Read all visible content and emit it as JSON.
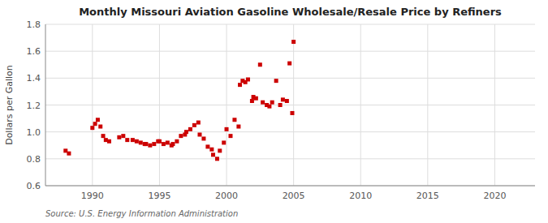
{
  "chart_data": {
    "type": "scatter",
    "title": "Monthly Missouri Aviation Gasoline Wholesale/Resale Price by Refiners",
    "ylabel": "Dollars per Gallon",
    "source": "Source: U.S. Energy Information Administration",
    "xlim": [
      1986.5,
      2023
    ],
    "ylim": [
      0.6,
      1.8
    ],
    "xticks": [
      1990,
      1995,
      2000,
      2005,
      2010,
      2015,
      2020
    ],
    "yticks": [
      0.6,
      0.8,
      {
        "value": 1.0,
        "label": "1.0"
      },
      1.2,
      1.4,
      1.6,
      1.8
    ],
    "grid": true,
    "color": "#cc0000",
    "marker": "square",
    "x": [
      1988.0,
      1988.25,
      1990.0,
      1990.2,
      1990.4,
      1990.6,
      1990.8,
      1991.0,
      1991.25,
      1992.0,
      1992.3,
      1992.6,
      1993.0,
      1993.3,
      1993.6,
      1993.9,
      1994.0,
      1994.3,
      1994.6,
      1994.9,
      1995.0,
      1995.3,
      1995.6,
      1995.9,
      1996.0,
      1996.3,
      1996.6,
      1996.9,
      1997.0,
      1997.3,
      1997.6,
      1997.9,
      1998.0,
      1998.3,
      1998.6,
      1998.9,
      1999.0,
      1999.3,
      1999.5,
      1999.8,
      2000.0,
      2000.3,
      2000.6,
      2000.9,
      2001.0,
      2001.2,
      2001.4,
      2001.6,
      2001.9,
      2002.0,
      2002.2,
      2002.5,
      2002.7,
      2003.0,
      2003.2,
      2003.4,
      2003.7,
      2004.0,
      2004.2,
      2004.5,
      2004.7,
      2004.9,
      2005.0
    ],
    "values": [
      0.86,
      0.84,
      1.03,
      1.06,
      1.09,
      1.04,
      0.97,
      0.94,
      0.93,
      0.96,
      0.97,
      0.94,
      0.94,
      0.93,
      0.92,
      0.91,
      0.91,
      0.9,
      0.91,
      0.93,
      0.93,
      0.91,
      0.92,
      0.9,
      0.91,
      0.93,
      0.97,
      0.98,
      1.0,
      1.02,
      1.05,
      1.07,
      0.98,
      0.95,
      0.89,
      0.87,
      0.83,
      0.8,
      0.86,
      0.92,
      1.02,
      0.97,
      1.09,
      1.04,
      1.35,
      1.38,
      1.37,
      1.39,
      1.23,
      1.26,
      1.25,
      1.5,
      1.22,
      1.2,
      1.19,
      1.22,
      1.38,
      1.2,
      1.24,
      1.23,
      1.51,
      1.14,
      1.67
    ]
  }
}
